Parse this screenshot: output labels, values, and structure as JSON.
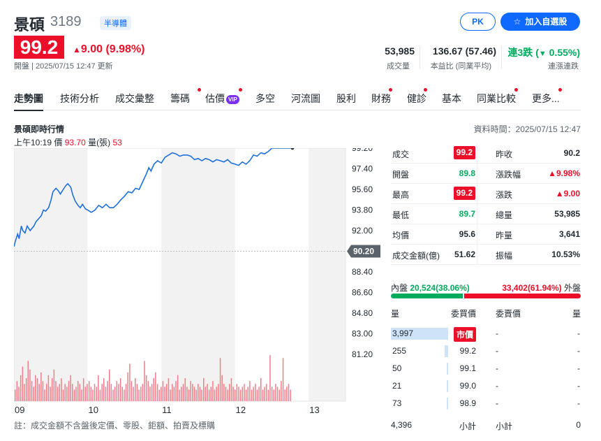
{
  "header": {
    "name": "景碩",
    "code": "3189",
    "industry_tag": "半導體",
    "pk_button": "PK",
    "add_watchlist_button": "加入自選股"
  },
  "quote": {
    "price": "99.2",
    "change": "9.00 (9.98%)",
    "status": "開盤 | 2025/07/15 12:47 更新",
    "stats": [
      {
        "value": "53,985",
        "label": "成交量"
      },
      {
        "value": "136.67 (57.46)",
        "label": "本益比 (同業平均)"
      },
      {
        "value_prefix": "連3跌 (",
        "value_arrow": "▼",
        "value_suffix": " 0.55%)",
        "label": "連漲連跌"
      }
    ]
  },
  "nav": {
    "tabs": [
      "走勢圖",
      "技術分析",
      "成交彙整",
      "籌碼",
      "估價",
      "多空",
      "河流圖",
      "股利",
      "財務",
      "健診",
      "基本",
      "同業比較",
      "更多..."
    ],
    "vip_label": "VIP"
  },
  "panel": {
    "title": "景碩即時行情",
    "data_time": "資料時間：2025/07/15 12:47",
    "tooltip_time": "上午10:19",
    "tooltip_price_label": "價",
    "tooltip_price": "93.70",
    "tooltip_vol_label": "量(張)",
    "tooltip_vol": "53"
  },
  "chart_data": {
    "type": "line",
    "title": "",
    "x_ticks": [
      "09",
      "10",
      "11",
      "12",
      "13"
    ],
    "y_ticks": [
      "99.20",
      "97.40",
      "95.60",
      "93.80",
      "92.00",
      "88.40",
      "86.60",
      "84.80",
      "83.00",
      "81.20"
    ],
    "reference_label": "90.20",
    "reference_price": 90.2,
    "ylim": [
      81.2,
      99.2
    ],
    "x_range_hours": [
      9.0,
      13.5
    ],
    "price_series": [
      [
        9.0,
        90.6
      ],
      [
        9.02,
        91.1
      ],
      [
        9.05,
        91.7
      ],
      [
        9.07,
        91.3
      ],
      [
        9.1,
        92.4
      ],
      [
        9.12,
        92.0
      ],
      [
        9.15,
        91.8
      ],
      [
        9.18,
        92.4
      ],
      [
        9.22,
        92.0
      ],
      [
        9.27,
        92.4
      ],
      [
        9.3,
        92.8
      ],
      [
        9.33,
        93.0
      ],
      [
        9.37,
        93.3
      ],
      [
        9.4,
        93.8
      ],
      [
        9.43,
        93.7
      ],
      [
        9.47,
        94.0
      ],
      [
        9.5,
        94.6
      ],
      [
        9.53,
        95.4
      ],
      [
        9.57,
        95.7
      ],
      [
        9.6,
        95.5
      ],
      [
        9.63,
        95.2
      ],
      [
        9.67,
        95.6
      ],
      [
        9.7,
        95.9
      ],
      [
        9.73,
        96.1
      ],
      [
        9.77,
        95.8
      ],
      [
        9.8,
        95.1
      ],
      [
        9.83,
        94.6
      ],
      [
        9.87,
        94.2
      ],
      [
        9.9,
        94.0
      ],
      [
        9.93,
        94.3
      ],
      [
        9.97,
        93.9
      ],
      [
        10.0,
        93.8
      ],
      [
        10.05,
        93.6
      ],
      [
        10.1,
        93.8
      ],
      [
        10.15,
        94.2
      ],
      [
        10.2,
        94.0
      ],
      [
        10.25,
        94.3
      ],
      [
        10.3,
        94.0
      ],
      [
        10.35,
        94.0
      ],
      [
        10.4,
        94.3
      ],
      [
        10.45,
        94.7
      ],
      [
        10.5,
        95.0
      ],
      [
        10.55,
        95.4
      ],
      [
        10.6,
        95.3
      ],
      [
        10.65,
        95.7
      ],
      [
        10.7,
        95.6
      ],
      [
        10.75,
        96.3
      ],
      [
        10.8,
        97.0
      ],
      [
        10.83,
        97.5
      ],
      [
        10.86,
        97.2
      ],
      [
        10.9,
        97.8
      ],
      [
        10.95,
        98.1
      ],
      [
        11.0,
        97.9
      ],
      [
        11.05,
        98.4
      ],
      [
        11.1,
        98.6
      ],
      [
        11.15,
        98.8
      ],
      [
        11.2,
        98.7
      ],
      [
        11.25,
        98.5
      ],
      [
        11.3,
        98.6
      ],
      [
        11.35,
        98.6
      ],
      [
        11.4,
        98.5
      ],
      [
        11.45,
        98.2
      ],
      [
        11.5,
        98.3
      ],
      [
        11.55,
        98.1
      ],
      [
        11.6,
        98.3
      ],
      [
        11.65,
        98.2
      ],
      [
        11.7,
        98.0
      ],
      [
        11.75,
        98.2
      ],
      [
        11.8,
        98.1
      ],
      [
        11.85,
        98.0
      ],
      [
        11.9,
        98.2
      ],
      [
        11.95,
        97.9
      ],
      [
        12.0,
        97.8
      ],
      [
        12.05,
        97.7
      ],
      [
        12.1,
        98.0
      ],
      [
        12.15,
        97.8
      ],
      [
        12.2,
        98.1
      ],
      [
        12.25,
        98.6
      ],
      [
        12.3,
        98.5
      ],
      [
        12.35,
        98.8
      ],
      [
        12.4,
        98.7
      ],
      [
        12.45,
        98.9
      ],
      [
        12.5,
        99.2
      ],
      [
        12.55,
        99.2
      ],
      [
        12.6,
        99.2
      ],
      [
        12.67,
        99.2
      ],
      [
        12.78,
        99.2
      ]
    ],
    "volume_series": [
      4,
      7,
      5,
      9,
      12,
      6,
      8,
      14,
      11,
      7,
      5,
      9,
      8,
      6,
      10,
      7,
      4,
      6,
      9,
      5,
      8,
      11,
      7,
      5,
      6,
      8,
      4,
      6,
      5,
      7,
      9,
      6,
      4,
      5,
      7,
      6,
      4,
      8,
      5,
      6,
      7,
      5,
      4,
      6,
      5,
      9,
      4,
      6,
      8,
      5,
      7,
      11,
      6,
      4,
      5,
      7,
      6,
      8,
      5,
      4,
      6,
      10,
      13,
      7,
      5,
      8,
      6,
      4,
      5,
      6,
      14,
      9,
      7,
      5,
      6,
      8,
      10,
      6,
      4,
      5,
      7,
      5,
      6,
      8,
      4,
      6,
      5,
      7,
      9,
      4,
      5,
      6,
      8,
      5,
      4,
      7,
      6,
      5,
      4,
      6,
      5,
      4,
      8,
      5,
      6,
      4,
      5,
      7,
      4,
      5,
      6,
      15,
      9,
      6,
      5,
      4,
      6,
      8,
      5,
      4,
      6,
      5,
      4,
      5,
      6,
      4,
      5,
      7,
      4,
      5,
      6,
      4,
      5,
      8,
      4,
      5,
      6,
      4,
      16,
      5,
      4,
      6,
      5,
      4,
      7,
      15,
      4,
      5,
      6,
      4
    ]
  },
  "quote_table": [
    {
      "l1": "成交",
      "v1": "99.2",
      "b1": true,
      "c1": "red",
      "l2": "昨收",
      "v2": "90.2",
      "c2": "dark"
    },
    {
      "l1": "開盤",
      "v1": "89.8",
      "c1": "green",
      "l2": "漲跌幅",
      "v2": "▲9.98%",
      "c2": "red"
    },
    {
      "l1": "最高",
      "v1": "99.2",
      "b1": true,
      "c1": "red",
      "l2": "漲跌",
      "v2": "▲9.00",
      "c2": "red"
    },
    {
      "l1": "最低",
      "v1": "89.7",
      "c1": "green",
      "l2": "總量",
      "v2": "53,985",
      "c2": "dark"
    },
    {
      "l1": "均價",
      "v1": "95.6",
      "c1": "dark",
      "l2": "昨量",
      "v2": "3,641",
      "c2": "dark"
    },
    {
      "l1": "成交金額(億)",
      "v1": "51.62",
      "c1": "dark",
      "l2": "振幅",
      "v2": "10.53%",
      "c2": "dark"
    }
  ],
  "bid_ask": {
    "inner_label": "內盤",
    "inner_value": "20,524(38.06%)",
    "outer_value": "33,402(61.94%)",
    "outer_label": "外盤",
    "inner_ratio": 0.3806
  },
  "order_book": {
    "headers": [
      "量",
      "委買價",
      "委賣價",
      "量"
    ],
    "rows": [
      {
        "bid_vol": "3,997",
        "bid_price": "市價",
        "ask_price": "-",
        "ask_vol": "-",
        "bid_ratio": 1.0
      },
      {
        "bid_vol": "255",
        "bid_price": "99.2",
        "ask_price": "-",
        "ask_vol": "-",
        "bid_ratio": 0.06
      },
      {
        "bid_vol": "50",
        "bid_price": "99.1",
        "ask_price": "-",
        "ask_vol": "-",
        "bid_ratio": 0.012
      },
      {
        "bid_vol": "21",
        "bid_price": "99.0",
        "ask_price": "-",
        "ask_vol": "-",
        "bid_ratio": 0.006
      },
      {
        "bid_vol": "73",
        "bid_price": "98.9",
        "ask_price": "-",
        "ask_vol": "-",
        "bid_ratio": 0.018
      }
    ],
    "total_bid": "4,396",
    "total_bid_label": "小計",
    "total_ask_label": "小計",
    "total_ask": "0"
  },
  "footnote": "註：成交金額不含盤後定價、零股、鉅額、拍賣及標購",
  "colors": {
    "up": "#eb0f29",
    "down": "#00ab5e",
    "accent": "#0f69ff",
    "line": "#1f6fd9"
  }
}
